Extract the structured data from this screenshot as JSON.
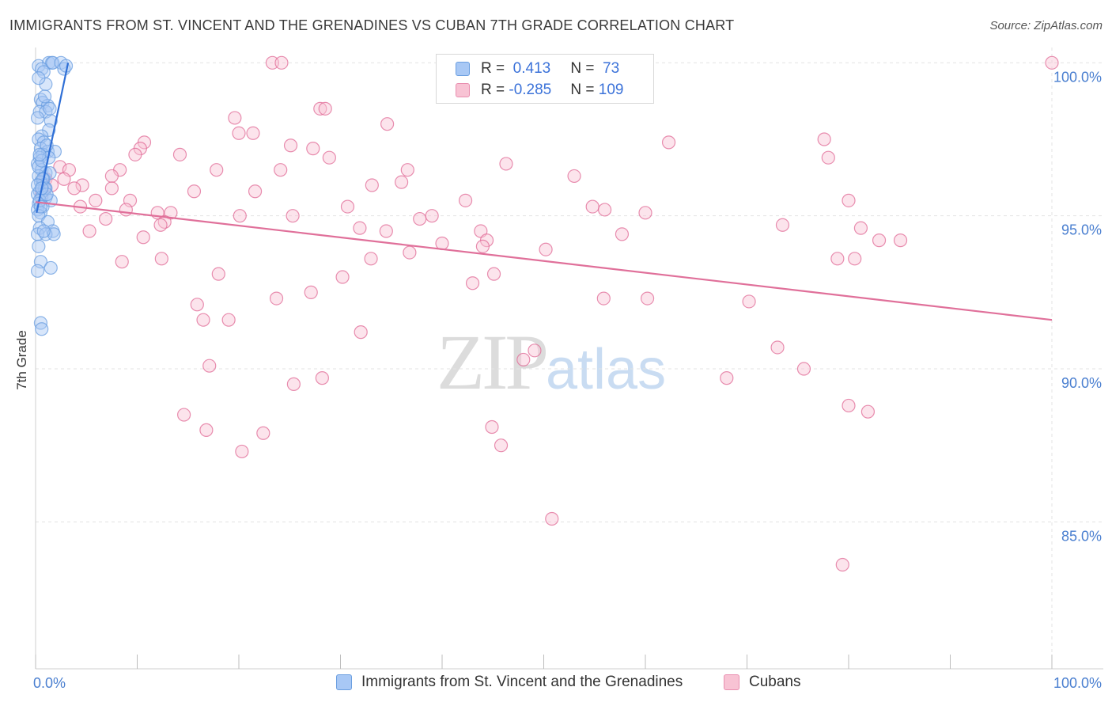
{
  "title": "IMMIGRANTS FROM ST. VINCENT AND THE GRENADINES VS CUBAN 7TH GRADE CORRELATION CHART",
  "source": "Source: ZipAtlas.com",
  "watermark": {
    "zip": "ZIP",
    "atlas": "atlas"
  },
  "legend": {
    "r_label": "R = ",
    "n_label": "N = ",
    "rows": [
      {
        "r": " 0.413",
        "n": " 73",
        "color": "#a8c8f5",
        "border": "#6a9ee0"
      },
      {
        "r": "-0.285",
        "n": "109",
        "color": "#f8c3d4",
        "border": "#e98fb0"
      }
    ]
  },
  "bottom_legend": [
    {
      "label": "Immigrants from St. Vincent and the Grenadines",
      "color": "#a8c8f5",
      "border": "#6a9ee0"
    },
    {
      "label": "Cubans",
      "color": "#f8c3d4",
      "border": "#e98fb0"
    }
  ],
  "chart_data": {
    "type": "scatter",
    "title": "IMMIGRANTS FROM ST. VINCENT AND THE GRENADINES VS CUBAN 7TH GRADE CORRELATION CHART",
    "xlabel": "",
    "ylabel": "7th Grade",
    "xlim": [
      0,
      100
    ],
    "ylim": [
      80.2,
      100.5
    ],
    "x_tick_labels": [
      "0.0%",
      "100.0%"
    ],
    "y_ticks": [
      85,
      90,
      95,
      100
    ],
    "y_tick_labels": [
      "85.0%",
      "90.0%",
      "95.0%",
      "100.0%"
    ],
    "grid": true,
    "series": [
      {
        "name": "Immigrants from St. Vincent and the Grenadines",
        "color": "#6a9ee0",
        "fill": "#a8c8f5",
        "trend": {
          "x": [
            0.1,
            3.2
          ],
          "y": [
            95.1,
            100.0
          ]
        },
        "points": [
          [
            0.3,
            99.9
          ],
          [
            1.3,
            100.0
          ],
          [
            1.6,
            100.0
          ],
          [
            1.7,
            100.0
          ],
          [
            2.5,
            100.0
          ],
          [
            2.8,
            99.8
          ],
          [
            3.0,
            99.9
          ],
          [
            0.6,
            99.8
          ],
          [
            0.8,
            99.7
          ],
          [
            1.0,
            99.3
          ],
          [
            0.5,
            98.8
          ],
          [
            0.7,
            98.7
          ],
          [
            1.2,
            98.6
          ],
          [
            0.4,
            98.4
          ],
          [
            1.0,
            98.4
          ],
          [
            1.5,
            98.1
          ],
          [
            1.3,
            97.8
          ],
          [
            0.6,
            97.6
          ],
          [
            0.3,
            97.5
          ],
          [
            0.8,
            97.4
          ],
          [
            0.5,
            97.2
          ],
          [
            1.2,
            97.1
          ],
          [
            1.9,
            97.1
          ],
          [
            0.7,
            97.0
          ],
          [
            0.4,
            96.9
          ],
          [
            1.3,
            96.9
          ],
          [
            0.2,
            96.7
          ],
          [
            0.6,
            96.5
          ],
          [
            1.0,
            96.4
          ],
          [
            1.4,
            96.4
          ],
          [
            0.3,
            96.3
          ],
          [
            0.8,
            96.2
          ],
          [
            0.5,
            96.1
          ],
          [
            0.7,
            96.0
          ],
          [
            1.0,
            95.9
          ],
          [
            0.4,
            95.8
          ],
          [
            0.2,
            95.7
          ],
          [
            0.6,
            95.6
          ],
          [
            1.0,
            95.6
          ],
          [
            1.5,
            95.5
          ],
          [
            0.3,
            95.4
          ],
          [
            0.7,
            95.3
          ],
          [
            0.2,
            95.2
          ],
          [
            0.5,
            95.1
          ],
          [
            0.3,
            95.0
          ],
          [
            1.2,
            94.8
          ],
          [
            0.4,
            94.6
          ],
          [
            1.7,
            94.5
          ],
          [
            0.2,
            94.4
          ],
          [
            1.0,
            94.4
          ],
          [
            1.8,
            94.4
          ],
          [
            0.3,
            94.0
          ],
          [
            0.5,
            93.5
          ],
          [
            1.5,
            93.3
          ],
          [
            0.2,
            93.2
          ],
          [
            0.5,
            91.5
          ],
          [
            0.6,
            91.3
          ],
          [
            0.3,
            96.6
          ],
          [
            0.9,
            95.9
          ],
          [
            0.4,
            95.5
          ],
          [
            0.6,
            96.8
          ],
          [
            1.1,
            97.3
          ],
          [
            0.2,
            98.2
          ],
          [
            0.9,
            98.9
          ],
          [
            1.4,
            98.5
          ],
          [
            0.3,
            99.5
          ],
          [
            0.7,
            96.2
          ],
          [
            0.5,
            95.3
          ],
          [
            1.1,
            95.7
          ],
          [
            0.8,
            94.5
          ],
          [
            0.2,
            96.0
          ],
          [
            0.6,
            95.9
          ],
          [
            0.4,
            97.0
          ]
        ]
      },
      {
        "name": "Cubans",
        "color": "#e06a96",
        "fill": "#f8c3d4",
        "trend": {
          "x": [
            0,
            100
          ],
          "y": [
            95.45,
            91.6
          ]
        },
        "points": [
          [
            100,
            100.0
          ],
          [
            23.3,
            100.0
          ],
          [
            24.2,
            100.0
          ],
          [
            28.0,
            98.5
          ],
          [
            28.5,
            98.5
          ],
          [
            19.6,
            98.2
          ],
          [
            34.6,
            98.0
          ],
          [
            20.0,
            97.7
          ],
          [
            21.4,
            97.7
          ],
          [
            10.7,
            97.4
          ],
          [
            10.3,
            97.2
          ],
          [
            25.1,
            97.3
          ],
          [
            27.3,
            97.2
          ],
          [
            9.8,
            97.0
          ],
          [
            14.2,
            97.0
          ],
          [
            62.3,
            97.4
          ],
          [
            77.6,
            97.5
          ],
          [
            78.0,
            96.9
          ],
          [
            28.9,
            96.9
          ],
          [
            46.3,
            96.7
          ],
          [
            2.4,
            96.6
          ],
          [
            3.3,
            96.5
          ],
          [
            17.8,
            96.5
          ],
          [
            24.1,
            96.5
          ],
          [
            36.6,
            96.5
          ],
          [
            8.3,
            96.5
          ],
          [
            7.5,
            96.3
          ],
          [
            53.0,
            96.3
          ],
          [
            1.0,
            96.2
          ],
          [
            2.8,
            96.2
          ],
          [
            4.6,
            96.0
          ],
          [
            1.6,
            96.0
          ],
          [
            33.1,
            96.0
          ],
          [
            36.0,
            96.1
          ],
          [
            7.5,
            95.9
          ],
          [
            3.8,
            95.9
          ],
          [
            15.6,
            95.8
          ],
          [
            21.6,
            95.8
          ],
          [
            0.6,
            95.7
          ],
          [
            9.3,
            95.5
          ],
          [
            42.3,
            95.5
          ],
          [
            80.0,
            95.5
          ],
          [
            5.9,
            95.5
          ],
          [
            4.4,
            95.3
          ],
          [
            8.9,
            95.2
          ],
          [
            13.3,
            95.1
          ],
          [
            30.7,
            95.3
          ],
          [
            54.8,
            95.3
          ],
          [
            56.0,
            95.2
          ],
          [
            60.0,
            95.1
          ],
          [
            12.0,
            95.1
          ],
          [
            20.1,
            95.0
          ],
          [
            25.3,
            95.0
          ],
          [
            37.8,
            94.9
          ],
          [
            6.9,
            94.9
          ],
          [
            12.7,
            94.8
          ],
          [
            12.3,
            94.7
          ],
          [
            73.5,
            94.7
          ],
          [
            81.2,
            94.6
          ],
          [
            31.9,
            94.6
          ],
          [
            34.5,
            94.5
          ],
          [
            43.8,
            94.5
          ],
          [
            5.3,
            94.5
          ],
          [
            57.7,
            94.4
          ],
          [
            10.6,
            94.3
          ],
          [
            85.1,
            94.2
          ],
          [
            44.4,
            94.2
          ],
          [
            83.0,
            94.2
          ],
          [
            44.0,
            94.0
          ],
          [
            40.0,
            94.1
          ],
          [
            50.2,
            93.9
          ],
          [
            36.8,
            93.8
          ],
          [
            33.0,
            93.6
          ],
          [
            78.9,
            93.6
          ],
          [
            80.6,
            93.6
          ],
          [
            8.5,
            93.5
          ],
          [
            12.4,
            93.6
          ],
          [
            18.0,
            93.1
          ],
          [
            30.2,
            93.0
          ],
          [
            45.1,
            93.1
          ],
          [
            43.0,
            92.8
          ],
          [
            27.1,
            92.5
          ],
          [
            23.7,
            92.3
          ],
          [
            55.9,
            92.3
          ],
          [
            60.2,
            92.3
          ],
          [
            70.2,
            92.2
          ],
          [
            15.9,
            92.1
          ],
          [
            16.5,
            91.6
          ],
          [
            19.0,
            91.6
          ],
          [
            32.0,
            91.2
          ],
          [
            49.1,
            90.6
          ],
          [
            48.0,
            90.3
          ],
          [
            17.1,
            90.1
          ],
          [
            73.0,
            90.7
          ],
          [
            75.6,
            90.0
          ],
          [
            28.2,
            89.7
          ],
          [
            25.4,
            89.5
          ],
          [
            68.0,
            89.7
          ],
          [
            80.0,
            88.8
          ],
          [
            81.9,
            88.6
          ],
          [
            14.6,
            88.5
          ],
          [
            16.8,
            88.0
          ],
          [
            44.9,
            88.1
          ],
          [
            22.4,
            87.9
          ],
          [
            45.8,
            87.5
          ],
          [
            20.3,
            87.3
          ],
          [
            50.8,
            85.1
          ],
          [
            79.4,
            83.6
          ],
          [
            39.0,
            95.0
          ]
        ]
      }
    ]
  }
}
